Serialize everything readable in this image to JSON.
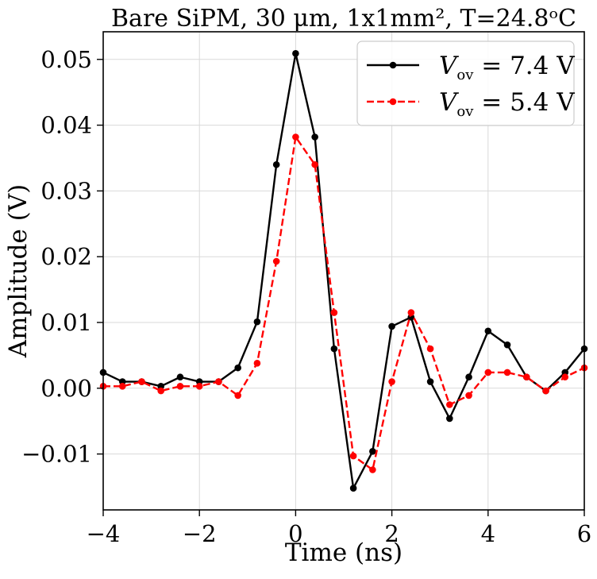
{
  "chart_data": {
    "type": "line",
    "title": "Bare SiPM, 30 μm, 1x1mm², T=24.8ᵒC",
    "xlabel": "Time (ns)",
    "ylabel": "Amplitude (V)",
    "xlim": [
      -4,
      6
    ],
    "ylim": [
      -0.0185,
      0.0542
    ],
    "grid": true,
    "legend_position": "top-right",
    "x_ticks": [
      -4,
      -2,
      0,
      2,
      4,
      6
    ],
    "x_tick_labels": [
      "−4",
      "−2",
      "0",
      "2",
      "4",
      "6"
    ],
    "y_ticks": [
      -0.01,
      0.0,
      0.01,
      0.02,
      0.03,
      0.04,
      0.05
    ],
    "y_tick_labels": [
      "−0.01",
      "0.00",
      "0.01",
      "0.02",
      "0.03",
      "0.04",
      "0.05"
    ],
    "x": [
      -4.0,
      -3.6,
      -3.2,
      -2.8,
      -2.4,
      -2.0,
      -1.6,
      -1.2,
      -0.8,
      -0.4,
      0.0,
      0.4,
      0.8,
      1.2,
      1.6,
      2.0,
      2.4,
      2.8,
      3.2,
      3.6,
      4.0,
      4.4,
      4.8,
      5.2,
      5.6,
      6.0
    ],
    "series": [
      {
        "name": "V_ov = 7.4 V",
        "legend_main": "V",
        "legend_sub": "ov",
        "legend_value": " = 7.4 V",
        "color": "#000000",
        "line_style": "solid",
        "values": [
          0.0024,
          0.001,
          0.001,
          0.0003,
          0.0017,
          0.001,
          0.001,
          0.0031,
          0.0101,
          0.034,
          0.0509,
          0.0382,
          0.006,
          -0.0152,
          -0.0096,
          0.0094,
          0.0108,
          0.001,
          -0.0046,
          0.0017,
          0.0087,
          0.0066,
          0.0017,
          -0.0004,
          0.0024,
          0.006
        ]
      },
      {
        "name": "V_ov = 5.4 V",
        "legend_main": "V",
        "legend_sub": "ov",
        "legend_value": " = 5.4 V",
        "color": "#ff0000",
        "line_style": "dashed",
        "values": [
          0.0003,
          0.0003,
          0.001,
          -0.0004,
          0.0003,
          0.0003,
          0.001,
          -0.0011,
          0.0038,
          0.0193,
          0.0382,
          0.034,
          0.0115,
          -0.0103,
          -0.0124,
          0.001,
          0.0115,
          0.006,
          -0.0025,
          -0.0011,
          0.0024,
          0.0024,
          0.0017,
          -0.0004,
          0.0017,
          0.0031
        ]
      }
    ]
  }
}
